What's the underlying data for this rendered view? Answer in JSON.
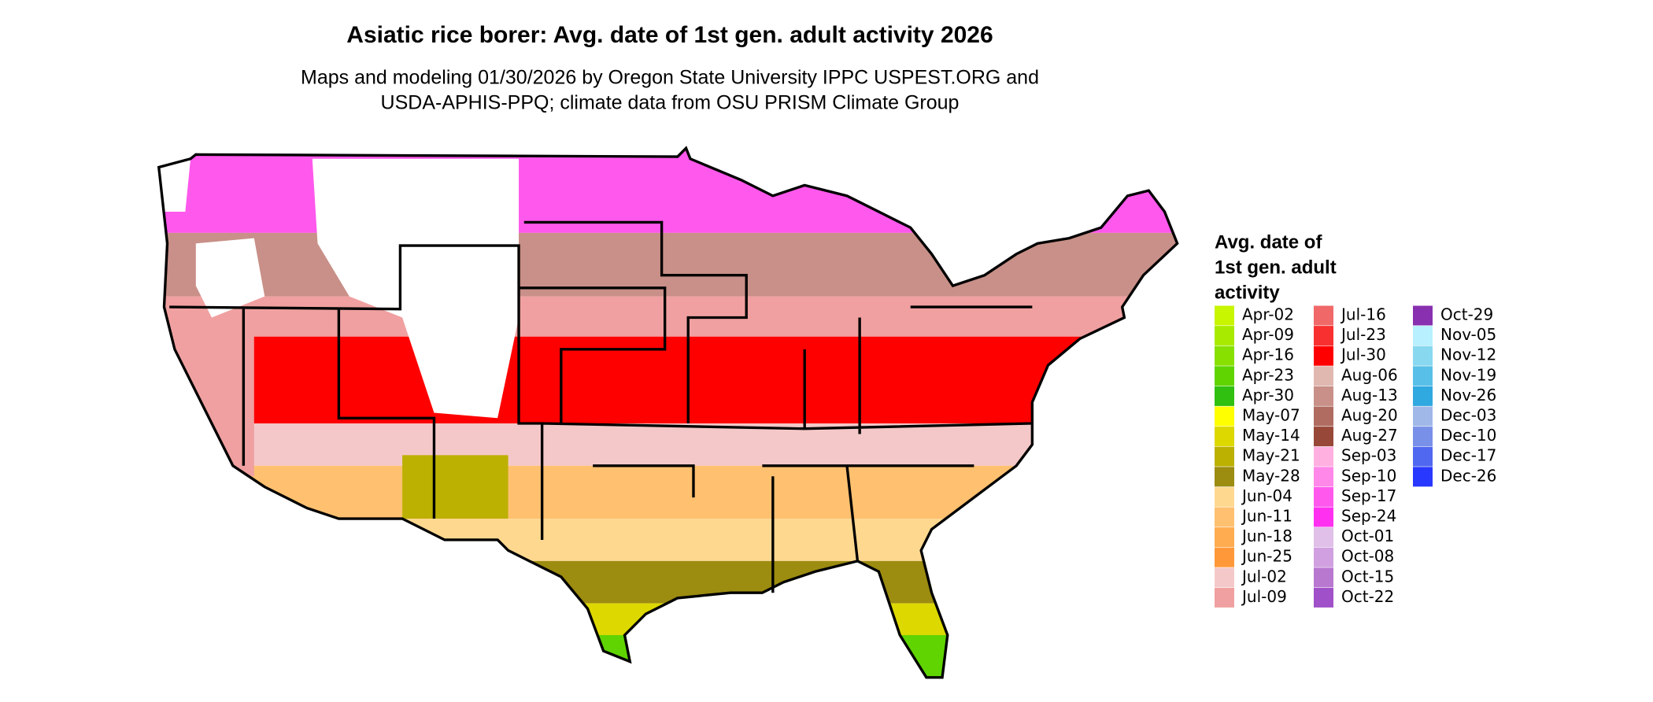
{
  "title": "Asiatic rice borer: Avg. date of 1st gen. adult activity 2026",
  "subtitle": [
    "Maps and modeling 01/30/2026 by Oregon State University IPPC USPEST.ORG and",
    "USDA-APHIS-PPQ; climate data from OSU PRISM Climate Group"
  ],
  "legend": {
    "title": [
      "Avg. date of",
      "1st gen. adult",
      "activity"
    ],
    "items": [
      {
        "label": "Apr-02",
        "color": "#c8f500"
      },
      {
        "label": "Apr-09",
        "color": "#a8eb00"
      },
      {
        "label": "Apr-16",
        "color": "#88e000"
      },
      {
        "label": "Apr-23",
        "color": "#5fd400"
      },
      {
        "label": "Apr-30",
        "color": "#30c010"
      },
      {
        "label": "May-07",
        "color": "#ffff00"
      },
      {
        "label": "May-14",
        "color": "#ddd800"
      },
      {
        "label": "May-21",
        "color": "#bcb000"
      },
      {
        "label": "May-28",
        "color": "#9c8c10"
      },
      {
        "label": "Jun-04",
        "color": "#ffd890"
      },
      {
        "label": "Jun-11",
        "color": "#ffc070"
      },
      {
        "label": "Jun-18",
        "color": "#ffac50"
      },
      {
        "label": "Jun-25",
        "color": "#ff9838"
      },
      {
        "label": "Jul-02",
        "color": "#f4c8c8"
      },
      {
        "label": "Jul-09",
        "color": "#f0a0a0"
      },
      {
        "label": "Jul-16",
        "color": "#f06868"
      },
      {
        "label": "Jul-23",
        "color": "#f83030"
      },
      {
        "label": "Jul-30",
        "color": "#ff0000"
      },
      {
        "label": "Aug-06",
        "color": "#e0b8b0"
      },
      {
        "label": "Aug-13",
        "color": "#c89088"
      },
      {
        "label": "Aug-20",
        "color": "#b06c60"
      },
      {
        "label": "Aug-27",
        "color": "#984838"
      },
      {
        "label": "Sep-03",
        "color": "#ffb0e0"
      },
      {
        "label": "Sep-10",
        "color": "#ff88e8"
      },
      {
        "label": "Sep-17",
        "color": "#ff58ec"
      },
      {
        "label": "Sep-24",
        "color": "#ff30f0"
      },
      {
        "label": "Oct-01",
        "color": "#e0c0e8"
      },
      {
        "label": "Oct-08",
        "color": "#d0a0e0"
      },
      {
        "label": "Oct-15",
        "color": "#b878d0"
      },
      {
        "label": "Oct-22",
        "color": "#a050c8"
      },
      {
        "label": "Oct-29",
        "color": "#8830b0"
      },
      {
        "label": "Nov-05",
        "color": "#b8f0ff"
      },
      {
        "label": "Nov-12",
        "color": "#88d8f0"
      },
      {
        "label": "Nov-19",
        "color": "#58c0e8"
      },
      {
        "label": "Nov-26",
        "color": "#30a8e0"
      },
      {
        "label": "Dec-03",
        "color": "#a0b8e8"
      },
      {
        "label": "Dec-10",
        "color": "#7890e8"
      },
      {
        "label": "Dec-17",
        "color": "#5068f0"
      },
      {
        "label": "Dec-26",
        "color": "#2838ff"
      }
    ]
  }
}
